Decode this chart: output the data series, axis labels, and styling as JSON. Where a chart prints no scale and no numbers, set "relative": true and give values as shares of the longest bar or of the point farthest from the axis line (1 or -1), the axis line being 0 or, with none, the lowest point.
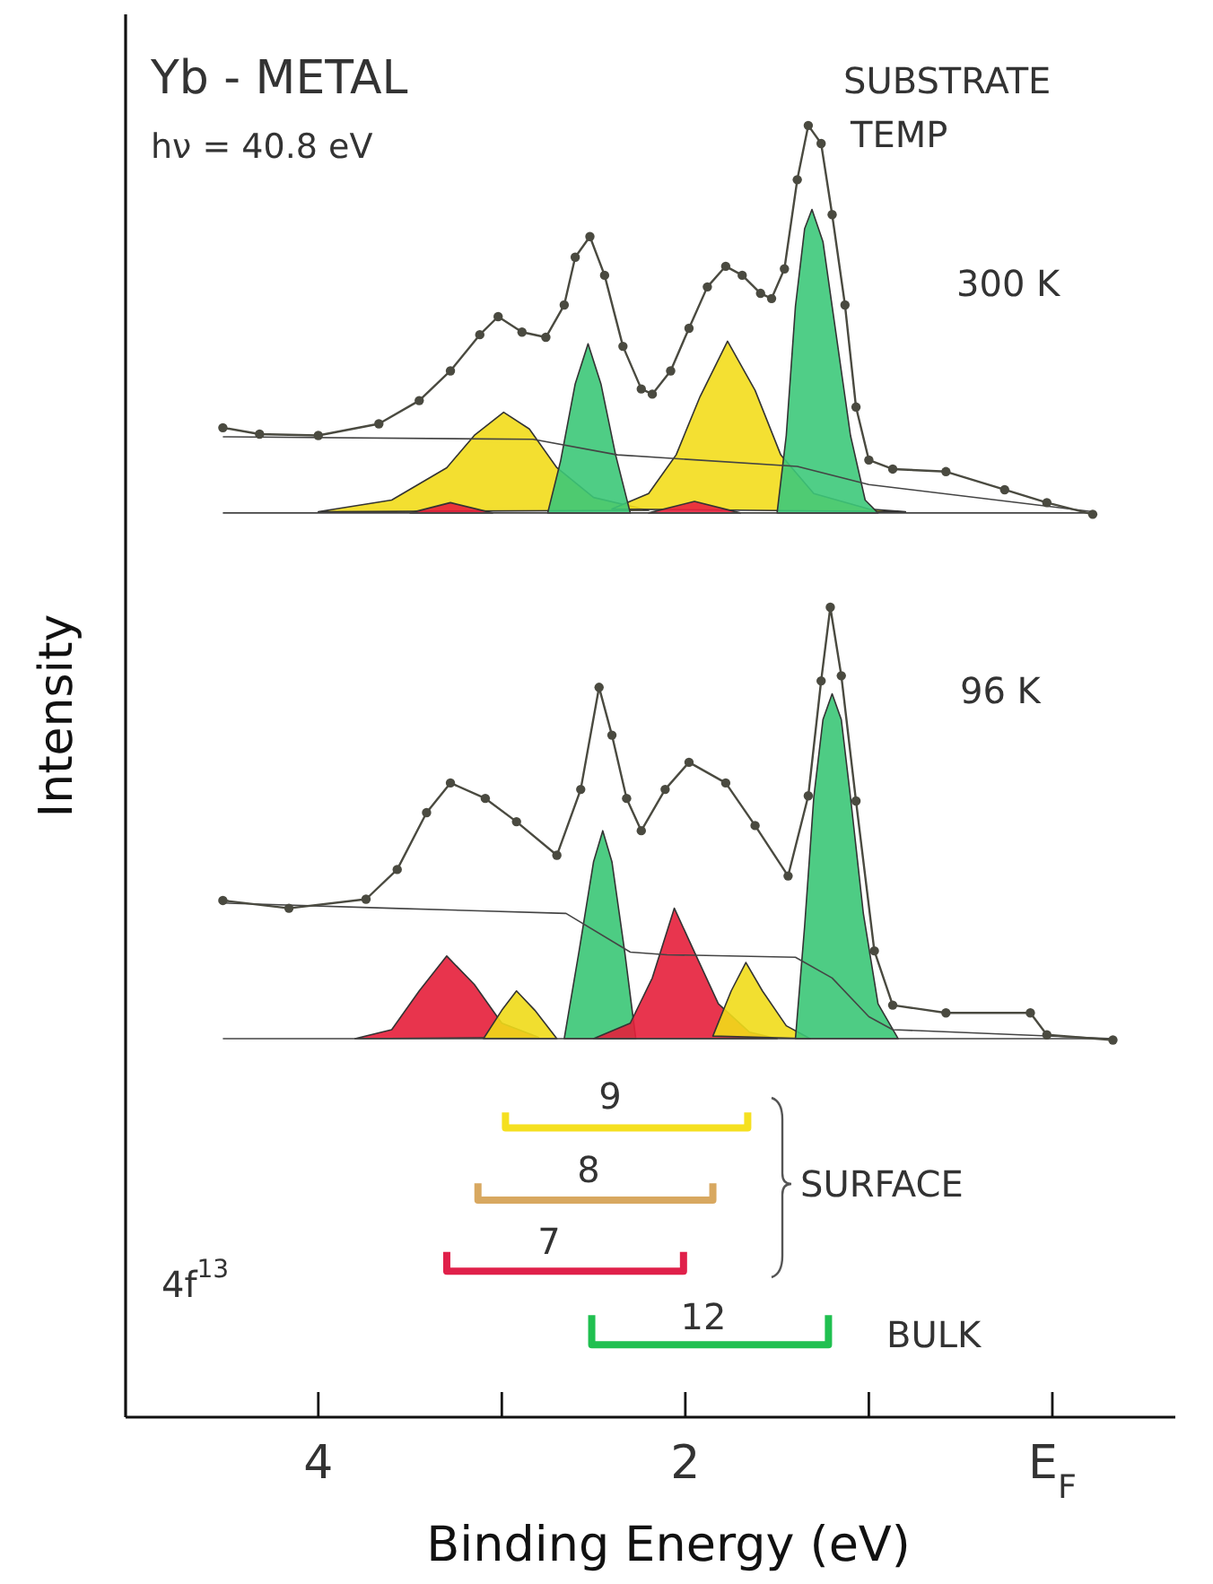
{
  "chart_data": {
    "type": "area",
    "title": "Yb - METAL",
    "subtitle": "hν = 40.8 eV",
    "xlabel": "Binding Energy  (eV)",
    "ylabel": "Intensity",
    "relative": true,
    "legend": false,
    "grid": false,
    "xlim": [
      5.05,
      -0.67
    ],
    "xticks": [
      4,
      {
        "value": 3,
        "label": null
      },
      2,
      {
        "value": 1,
        "label": null
      },
      {
        "value": 0,
        "label": "E$_{F}$"
      }
    ],
    "series": [
      {
        "color": "#f2dc1a",
        "x": [
          4.0,
          3.6,
          3.3,
          3.15,
          2.99,
          2.85,
          2.7,
          2.5,
          2.2
        ],
        "values": [
          0.701,
          0.71,
          0.735,
          0.76,
          0.778,
          0.765,
          0.735,
          0.712,
          0.702
        ]
      },
      {
        "color": "#f3dd1c",
        "x": [
          2.4,
          2.2,
          2.05,
          1.92,
          1.77,
          1.62,
          1.48,
          1.3,
          1.0,
          0.8
        ],
        "values": [
          0.703,
          0.715,
          0.745,
          0.79,
          0.833,
          0.795,
          0.745,
          0.715,
          0.703,
          0.701
        ]
      },
      {
        "color": "#e8203c",
        "x": [
          3.5,
          3.28,
          3.05
        ],
        "values": [
          0.7,
          0.708,
          0.7
        ]
      },
      {
        "color": "#e9223e",
        "x": [
          2.2,
          1.95,
          1.7
        ],
        "values": [
          0.7,
          0.709,
          0.7
        ]
      },
      {
        "color": "#3cc878",
        "x": [
          2.75,
          2.68,
          2.6,
          2.53,
          2.46,
          2.38,
          2.3
        ],
        "values": [
          0.7,
          0.74,
          0.8,
          0.831,
          0.8,
          0.745,
          0.7
        ]
      },
      {
        "color": "#3dc97a",
        "x": [
          1.5,
          1.45,
          1.4,
          1.35,
          1.31,
          1.25,
          1.18,
          1.1,
          1.02,
          0.95
        ],
        "values": [
          0.7,
          0.76,
          0.86,
          0.92,
          0.935,
          0.91,
          0.84,
          0.76,
          0.71,
          0.7
        ]
      },
      {
        "type": "line",
        "color": "#444444",
        "x": [
          4.52,
          2.83,
          2.37,
          1.39,
          1.0,
          -0.22
        ],
        "values": [
          0.759,
          0.757,
          0.745,
          0.736,
          0.722,
          0.701
        ]
      },
      {
        "type": "line",
        "color": "#444444",
        "x": [
          4.52,
          -0.22
        ],
        "values": [
          0.7,
          0.7
        ]
      },
      {
        "type": "line",
        "color": "#4a4a40",
        "marker": "circle",
        "x": [
          4.52,
          4.32,
          4.0,
          3.67,
          3.45,
          3.28,
          3.12,
          3.02,
          2.89,
          2.76,
          2.66,
          2.6,
          2.52,
          2.44,
          2.34,
          2.24,
          2.18,
          2.08,
          1.98,
          1.88,
          1.78,
          1.69,
          1.59,
          1.53,
          1.46,
          1.39,
          1.33,
          1.26,
          1.2,
          1.13,
          1.07,
          1.0,
          0.87,
          0.58,
          0.26,
          0.03,
          -0.22
        ],
        "values": [
          0.766,
          0.761,
          0.76,
          0.769,
          0.787,
          0.81,
          0.838,
          0.852,
          0.84,
          0.836,
          0.861,
          0.898,
          0.914,
          0.884,
          0.829,
          0.796,
          0.792,
          0.81,
          0.843,
          0.875,
          0.891,
          0.884,
          0.87,
          0.866,
          0.889,
          0.958,
          1.0,
          0.986,
          0.931,
          0.861,
          0.782,
          0.741,
          0.734,
          0.732,
          0.718,
          0.708,
          0.699
        ]
      },
      {
        "color": "#e51e3a",
        "x": [
          3.8,
          3.6,
          3.45,
          3.3,
          3.15,
          3.0,
          2.8
        ],
        "values": [
          0.293,
          0.3,
          0.33,
          0.357,
          0.335,
          0.305,
          0.294
        ]
      },
      {
        "color": "#f0da18",
        "x": [
          3.1,
          3.0,
          2.92,
          2.82,
          2.7
        ],
        "values": [
          0.293,
          0.315,
          0.33,
          0.315,
          0.293
        ]
      },
      {
        "color": "#3ac676",
        "x": [
          2.66,
          2.58,
          2.5,
          2.45,
          2.4,
          2.33,
          2.27
        ],
        "values": [
          0.293,
          0.36,
          0.43,
          0.454,
          0.43,
          0.36,
          0.293
        ]
      },
      {
        "color": "#e61f3b",
        "x": [
          2.5,
          2.3,
          2.18,
          2.06,
          1.95,
          1.82,
          1.65,
          1.5
        ],
        "values": [
          0.293,
          0.305,
          0.34,
          0.394,
          0.36,
          0.32,
          0.298,
          0.293
        ]
      },
      {
        "color": "#f1db19",
        "x": [
          1.85,
          1.75,
          1.67,
          1.58,
          1.45,
          1.32
        ],
        "values": [
          0.295,
          0.33,
          0.352,
          0.33,
          0.303,
          0.293
        ]
      },
      {
        "color": "#3bc777",
        "x": [
          1.4,
          1.35,
          1.3,
          1.25,
          1.2,
          1.15,
          1.1,
          1.03,
          0.95,
          0.84
        ],
        "values": [
          0.293,
          0.38,
          0.48,
          0.54,
          0.56,
          0.54,
          0.48,
          0.39,
          0.32,
          0.293
        ]
      },
      {
        "type": "line",
        "color": "#444444",
        "x": [
          4.52,
          3.6,
          2.65,
          2.3,
          2.1,
          1.4,
          1.2,
          1.0,
          0.87,
          -0.33
        ],
        "values": [
          0.398,
          0.394,
          0.39,
          0.36,
          0.358,
          0.356,
          0.34,
          0.31,
          0.3,
          0.293
        ]
      },
      {
        "type": "line",
        "color": "#444444",
        "x": [
          4.52,
          -0.33
        ],
        "values": [
          0.293,
          0.293
        ]
      },
      {
        "type": "line",
        "color": "#4a4a40",
        "marker": "circle",
        "x": [
          4.52,
          4.16,
          3.74,
          3.57,
          3.41,
          3.28,
          3.09,
          2.92,
          2.7,
          2.57,
          2.47,
          2.4,
          2.32,
          2.24,
          2.11,
          1.98,
          1.78,
          1.62,
          1.44,
          1.33,
          1.26,
          1.21,
          1.15,
          1.07,
          0.97,
          0.87,
          0.58,
          0.12,
          0.03,
          -0.33
        ],
        "values": [
          0.4,
          0.394,
          0.401,
          0.424,
          0.468,
          0.491,
          0.479,
          0.461,
          0.435,
          0.486,
          0.565,
          0.528,
          0.479,
          0.454,
          0.486,
          0.507,
          0.491,
          0.458,
          0.419,
          0.481,
          0.57,
          0.627,
          0.574,
          0.477,
          0.361,
          0.319,
          0.313,
          0.313,
          0.296,
          0.292
        ]
      },
      {
        "type": "line",
        "color": "#f5e020",
        "x": [
          2.98,
          2.98,
          1.66,
          1.66
        ],
        "values": [
          0.236,
          0.224,
          0.224,
          0.236
        ]
      },
      {
        "type": "line",
        "color": "#d8a860",
        "x": [
          3.13,
          3.13,
          1.85,
          1.85
        ],
        "values": [
          0.181,
          0.168,
          0.168,
          0.181
        ]
      },
      {
        "type": "line",
        "color": "#e0204a",
        "x": [
          3.3,
          3.3,
          2.01,
          2.01
        ],
        "values": [
          0.128,
          0.113,
          0.113,
          0.128
        ]
      },
      {
        "type": "line",
        "color": "#20c050",
        "x": [
          2.51,
          2.51,
          1.22,
          1.22
        ],
        "values": [
          0.079,
          0.056,
          0.056,
          0.079
        ]
      }
    ],
    "annotations": [
      "SUBSTRATE",
      "TEMP",
      "300 K",
      "96 K",
      "9",
      "8",
      "7",
      "12",
      "SURFACE",
      "BULK",
      "4f$^{13}$"
    ]
  }
}
